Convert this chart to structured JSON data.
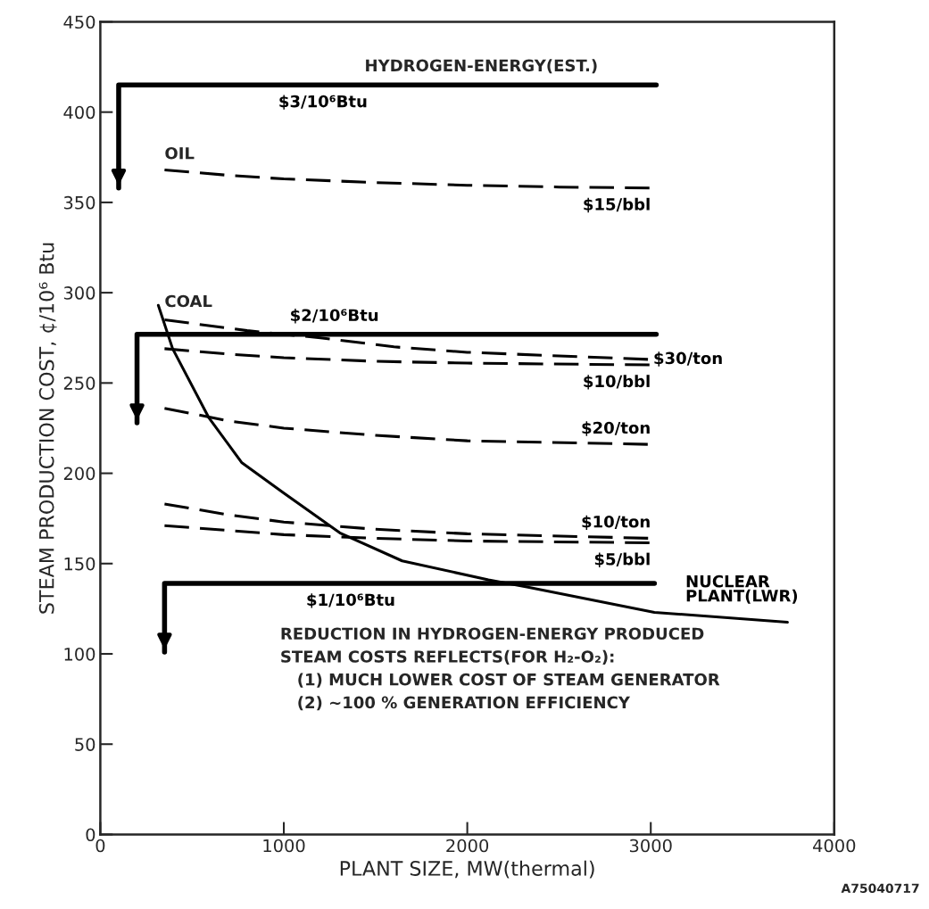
{
  "chart_data": {
    "type": "line",
    "xlabel": "PLANT SIZE, MW(thermal)",
    "ylabel": "STEAM PRODUCTION COST, ¢/10⁶ Btu",
    "xlim": [
      0,
      4000
    ],
    "xticks": [
      0,
      1000,
      2000,
      3000,
      4000
    ],
    "ylim": [
      0,
      450
    ],
    "yticks": [
      0,
      50,
      100,
      150,
      200,
      250,
      300,
      350,
      400,
      450
    ],
    "grid": false,
    "legend": false,
    "series": [
      {
        "name": "$3/10⁶Btu",
        "color": "#000000",
        "line_style": "solid",
        "x": [
          100,
          100,
          3030
        ],
        "values": [
          358,
          415,
          415
        ]
      },
      {
        "name": "$15/bbl",
        "color": "#000000",
        "line_style": "dashed",
        "x": [
          350,
          700,
          1000,
          1500,
          2000,
          2500,
          3000
        ],
        "values": [
          368,
          365,
          363,
          361,
          359.5,
          358.5,
          358
        ]
      },
      {
        "name": "$2/10⁶Btu",
        "color": "#000000",
        "line_style": "solid",
        "x": [
          200,
          200,
          3030
        ],
        "values": [
          228,
          277,
          277
        ]
      },
      {
        "name": "$30/ton",
        "color": "#000000",
        "line_style": "dashed",
        "x": [
          350,
          800,
          1200,
          1600,
          2000,
          2500,
          3000
        ],
        "values": [
          285,
          279,
          275,
          270,
          267,
          265,
          263
        ]
      },
      {
        "name": "$10/bbl",
        "color": "#000000",
        "line_style": "dashed",
        "x": [
          350,
          700,
          1000,
          1500,
          2000,
          3000
        ],
        "values": [
          269,
          266,
          264,
          262,
          261,
          260
        ]
      },
      {
        "name": "$20/ton",
        "color": "#000000",
        "line_style": "dashed",
        "x": [
          350,
          700,
          1000,
          1500,
          2000,
          3000
        ],
        "values": [
          236,
          229,
          225,
          221,
          218,
          216
        ]
      },
      {
        "name": "$10/ton",
        "color": "#000000",
        "line_style": "dashed",
        "x": [
          350,
          700,
          1000,
          1500,
          2000,
          3000
        ],
        "values": [
          183,
          177,
          173,
          169,
          166.5,
          164
        ]
      },
      {
        "name": "$5/bbl",
        "color": "#000000",
        "line_style": "dashed",
        "x": [
          350,
          1000,
          1500,
          2000,
          3000
        ],
        "values": [
          171,
          166,
          164,
          162.5,
          161.5
        ]
      },
      {
        "name": "$1/10⁶Btu",
        "color": "#000000",
        "line_style": "solid",
        "x": [
          350,
          350,
          3020
        ],
        "values": [
          101,
          139,
          139
        ]
      },
      {
        "name": "NUCLEAR\nPLANT(LWR)",
        "color": "#000000",
        "line_style": "solid",
        "x": [
          316,
          394,
          590,
          770,
          1000,
          1305,
          1645,
          2115,
          2325,
          3020,
          3745
        ],
        "values": [
          293,
          269,
          231,
          206,
          189,
          167,
          151.5,
          141,
          137,
          123,
          117.5
        ]
      }
    ],
    "annotations": [
      "HYDROGEN-ENERGY(EST.)",
      "OIL",
      "COAL",
      "REDUCTION IN HYDROGEN-ENERGY PRODUCED\nSTEAM COSTS REFLECTS(FOR H₂-O₂):\n   (1) MUCH LOWER COST OF STEAM GENERATOR\n   (2) ~100 % GENERATION EFFICIENCY",
      "A75040717"
    ]
  }
}
